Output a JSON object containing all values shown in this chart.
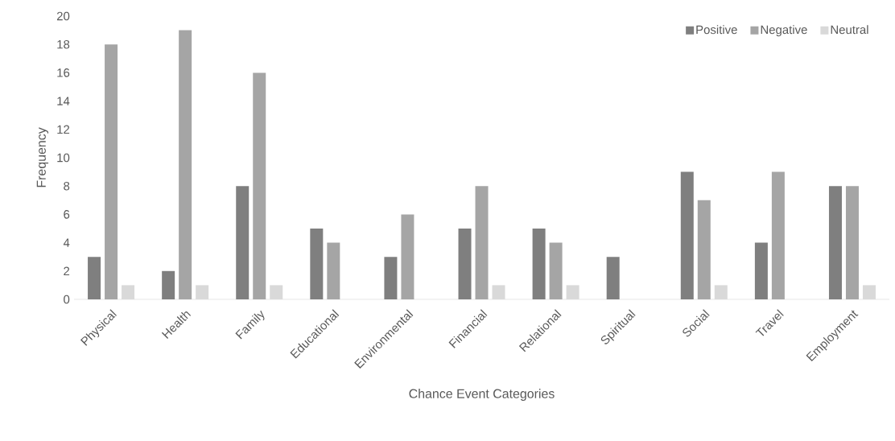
{
  "chart_data": {
    "type": "bar",
    "xlabel": "Chance Event Categories",
    "ylabel": "Frequency",
    "categories": [
      "Physical",
      "Health",
      "Family",
      "Educational",
      "Environmental",
      "Financial",
      "Relational",
      "Spiritual",
      "Social",
      "Travel",
      "Employment"
    ],
    "series": [
      {
        "name": "Positive",
        "color": "#7f7f7f",
        "values": [
          3,
          2,
          8,
          5,
          3,
          5,
          5,
          3,
          9,
          4,
          8
        ]
      },
      {
        "name": "Negative",
        "color": "#a5a5a5",
        "values": [
          18,
          19,
          16,
          4,
          6,
          8,
          4,
          0,
          7,
          9,
          8
        ]
      },
      {
        "name": "Neutral",
        "color": "#d9d9d9",
        "values": [
          1,
          1,
          1,
          0,
          0,
          1,
          1,
          0,
          1,
          0,
          1
        ]
      }
    ],
    "ylim": [
      0,
      20
    ],
    "yticks": [
      0,
      2,
      4,
      6,
      8,
      10,
      12,
      14,
      16,
      18,
      20
    ],
    "legend": "top right"
  }
}
